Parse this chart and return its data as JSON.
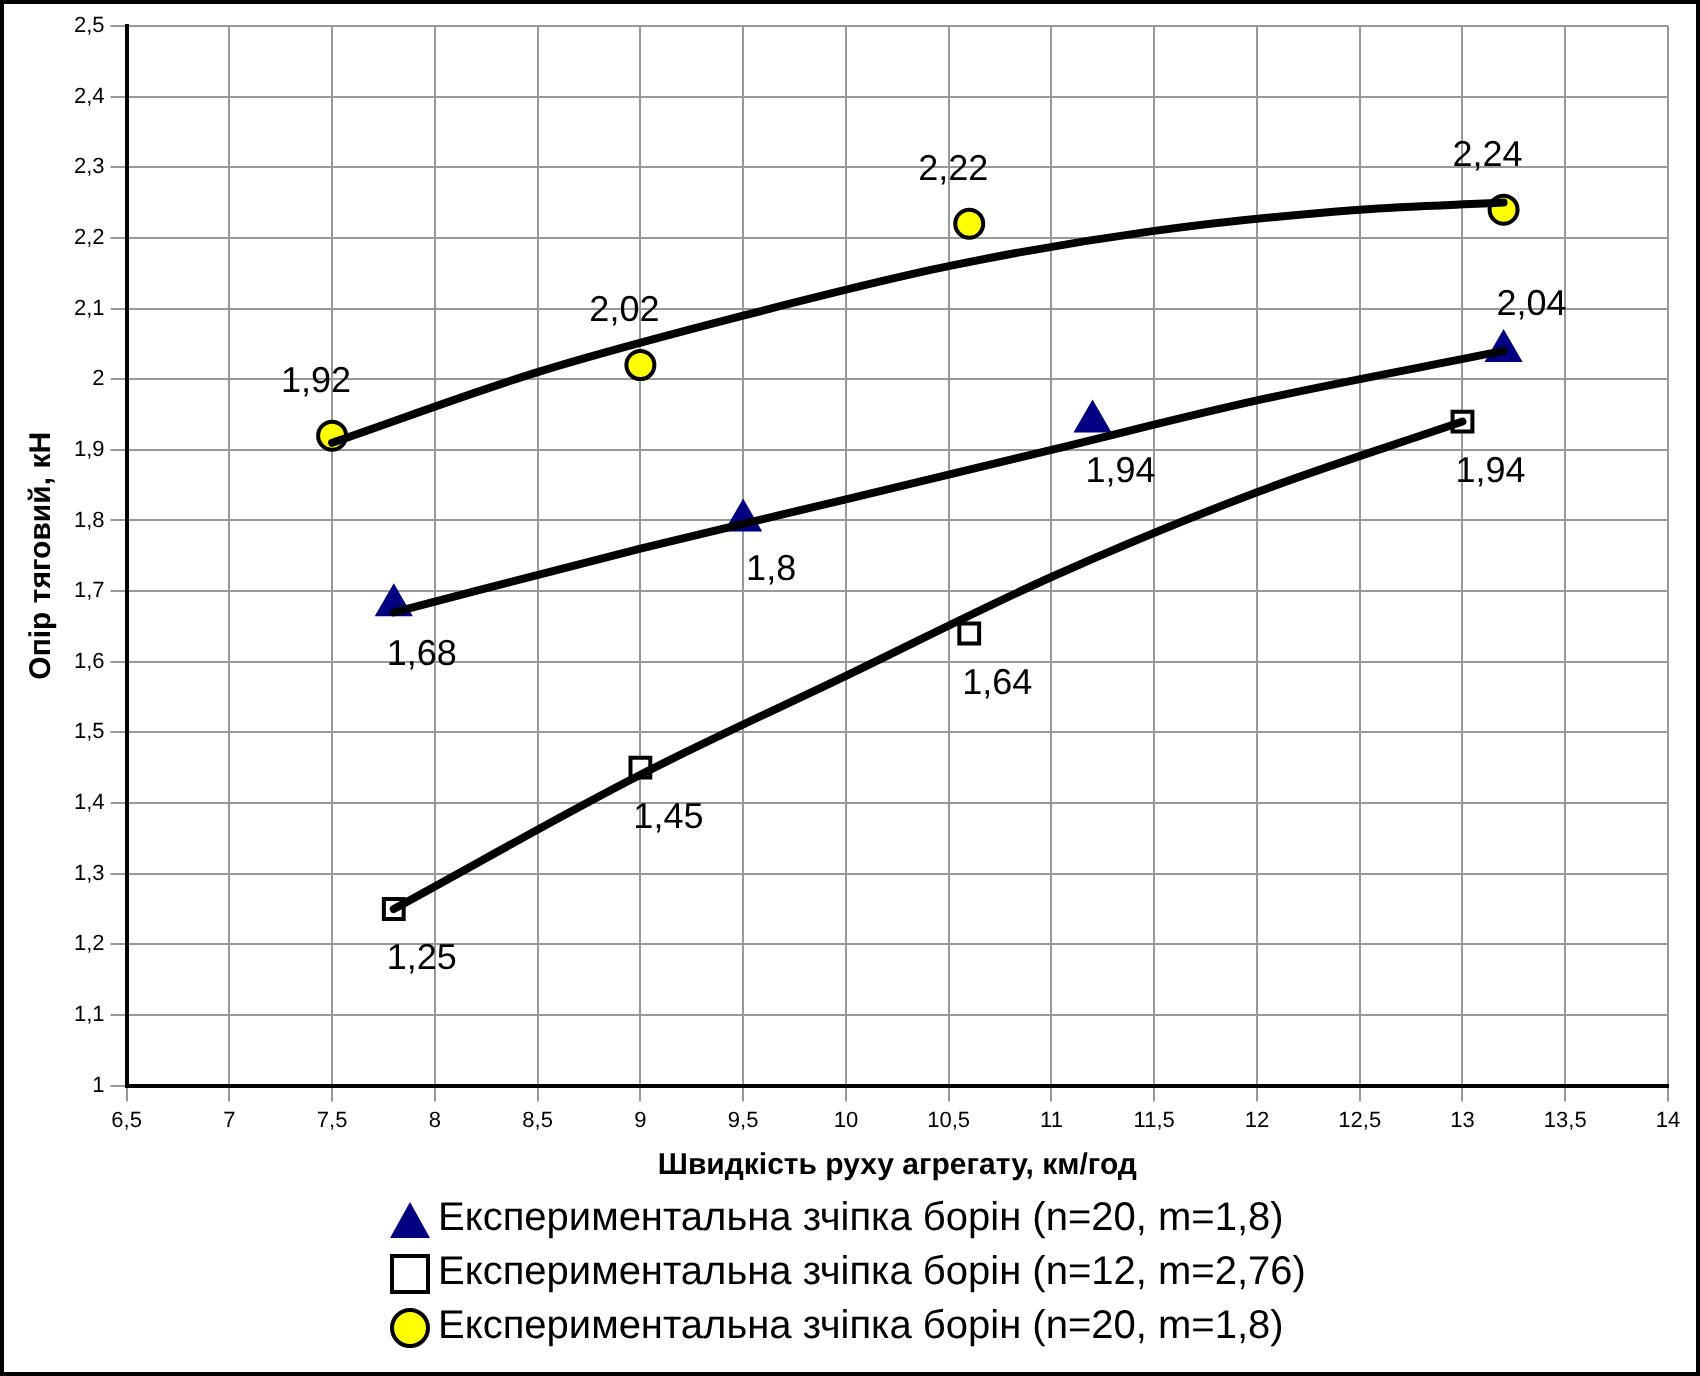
{
  "chart_data": {
    "type": "scatter",
    "xlabel": "Швидкість руху агрегату, км/год",
    "ylabel": "Опір тяговий, кН",
    "xlim": [
      6.5,
      14
    ],
    "xticks": [
      {
        "value": 6.5,
        "label": "6,5"
      },
      7,
      {
        "value": 7.5,
        "label": "7,5"
      },
      8,
      {
        "value": 8.5,
        "label": "8,5"
      },
      9,
      {
        "value": 9.5,
        "label": "9,5"
      },
      10,
      {
        "value": 10.5,
        "label": "10,5"
      },
      11,
      {
        "value": 11.5,
        "label": "11,5"
      },
      12,
      {
        "value": 12.5,
        "label": "12,5"
      },
      13,
      {
        "value": 13.5,
        "label": "13,5"
      },
      14
    ],
    "ylim": [
      1,
      2.5
    ],
    "yticks": [
      1,
      {
        "value": 1.1,
        "label": "1,1"
      },
      {
        "value": 1.2,
        "label": "1,2"
      },
      {
        "value": 1.3,
        "label": "1,3"
      },
      {
        "value": 1.4,
        "label": "1,4"
      },
      {
        "value": 1.5,
        "label": "1,5"
      },
      {
        "value": 1.6,
        "label": "1,6"
      },
      {
        "value": 1.7,
        "label": "1,7"
      },
      {
        "value": 1.8,
        "label": "1,8"
      },
      {
        "value": 1.9,
        "label": "1,9"
      },
      2,
      {
        "value": 2.1,
        "label": "2,1"
      },
      {
        "value": 2.2,
        "label": "2,2"
      },
      {
        "value": 2.3,
        "label": "2,3"
      },
      {
        "value": 2.4,
        "label": "2,4"
      },
      {
        "value": 2.5,
        "label": "2,5"
      }
    ],
    "grid": true,
    "legend": "bottom",
    "series": [
      {
        "type": "line",
        "color": "#000000",
        "marker": "none",
        "x": [
          7.5,
          8.5,
          9.5,
          10.5,
          11.5,
          12.5,
          13.2
        ],
        "values": [
          1.91,
          2.01,
          2.09,
          2.16,
          2.21,
          2.24,
          2.25
        ]
      },
      {
        "type": "line",
        "color": "#000000",
        "marker": "none",
        "x": [
          7.8,
          9,
          10,
          11,
          12,
          13.2
        ],
        "values": [
          1.67,
          1.76,
          1.83,
          1.9,
          1.97,
          2.04
        ]
      },
      {
        "type": "line",
        "color": "#000000",
        "marker": "none",
        "x": [
          7.8,
          9,
          10,
          11,
          12,
          13
        ],
        "values": [
          1.25,
          1.44,
          1.58,
          1.72,
          1.84,
          1.94
        ]
      },
      {
        "name": "Експериментальна зчіпка борін (n=20, m=1,8)",
        "type": "scatter",
        "marker": "triangle",
        "color": "#000080",
        "x": [
          7.8,
          9.5,
          11.2,
          13.2
        ],
        "values": [
          1.68,
          1.8,
          1.94,
          2.04
        ],
        "value_labels": [
          "1,68",
          "1,8",
          "1,94",
          "2,04"
        ]
      },
      {
        "name": "Експериментальна зчіпка борін (n=12, m=2,76)",
        "type": "scatter",
        "marker": "square",
        "color": "#ffffff",
        "x": [
          7.8,
          9,
          10.6,
          13
        ],
        "values": [
          1.25,
          1.45,
          1.64,
          1.94
        ],
        "value_labels": [
          "1,25",
          "1,45",
          "1,64",
          "1,94"
        ]
      },
      {
        "name": "Експериментальна зчіпка борін (n=20, m=1,8)",
        "type": "scatter",
        "marker": "circle",
        "color": "#ffff00",
        "x": [
          7.5,
          9,
          10.6,
          13.2
        ],
        "values": [
          1.92,
          2.02,
          2.22,
          2.24
        ],
        "value_labels": [
          "1,92",
          "2,02",
          "2,22",
          "2,24"
        ]
      }
    ]
  }
}
